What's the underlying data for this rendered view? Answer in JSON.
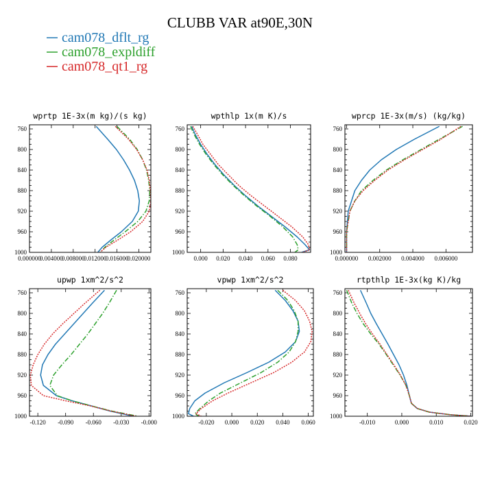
{
  "title": "CLUBB VAR at90E,30N",
  "legend": [
    {
      "name": "cam078_dflt_rg",
      "color": "#1f77b4",
      "style": "solid"
    },
    {
      "name": "cam078_expldiff",
      "color": "#2ca02c",
      "style": "dashdot"
    },
    {
      "name": "cam078_qt1_rg",
      "color": "#d62728",
      "style": "dotted"
    }
  ],
  "chart_data": [
    {
      "type": "line",
      "title": "wprtp  1E-3x(m kg)/(s kg)",
      "xlim": [
        0.0,
        0.0222
      ],
      "ylim": [
        1000,
        752
      ],
      "yticks": [
        760,
        800,
        840,
        880,
        920,
        960,
        1000
      ],
      "xticks": [
        0.0,
        0.004,
        0.008,
        0.012,
        0.016,
        0.02
      ],
      "xtick_labels": [
        "0.000000",
        "0.004000",
        "0.008000",
        "0.012000",
        "0.016000",
        "0.020000"
      ],
      "y": [
        755,
        780,
        800,
        820,
        840,
        860,
        880,
        900,
        920,
        940,
        960,
        975,
        990,
        1000
      ],
      "series": [
        {
          "name": "cam078_dflt_rg",
          "color": "#1f77b4",
          "style": "solid",
          "x": [
            0.0122,
            0.0143,
            0.0159,
            0.0172,
            0.0183,
            0.0192,
            0.0198,
            0.0201,
            0.0199,
            0.0188,
            0.0168,
            0.015,
            0.0133,
            0.0125
          ]
        },
        {
          "name": "cam078_expldiff",
          "color": "#2ca02c",
          "style": "dashdot",
          "x": [
            0.016,
            0.0183,
            0.0197,
            0.0207,
            0.0214,
            0.0218,
            0.022,
            0.0219,
            0.0213,
            0.0198,
            0.0175,
            0.0156,
            0.0138,
            0.013
          ]
        },
        {
          "name": "cam078_qt1_rg",
          "color": "#d62728",
          "style": "dotted",
          "x": [
            0.0157,
            0.0181,
            0.0196,
            0.0207,
            0.0215,
            0.0219,
            0.0221,
            0.0222,
            0.0219,
            0.0207,
            0.0185,
            0.0163,
            0.014,
            0.0129
          ]
        }
      ]
    },
    {
      "type": "line",
      "title": "wpthlp  1x(m K)/s",
      "xlim": [
        -0.012,
        0.098
      ],
      "ylim": [
        1000,
        752
      ],
      "yticks": [
        760,
        800,
        840,
        880,
        920,
        960,
        1000
      ],
      "xticks": [
        0.0,
        0.02,
        0.04,
        0.06,
        0.08
      ],
      "xtick_labels": [
        "0.000",
        "0.020",
        "0.040",
        "0.060",
        "0.080"
      ],
      "y": [
        755,
        770,
        790,
        810,
        830,
        850,
        870,
        890,
        910,
        930,
        950,
        970,
        985,
        995,
        1000
      ],
      "series": [
        {
          "name": "cam078_dflt_rg",
          "color": "#1f77b4",
          "style": "solid",
          "x": [
            -0.008,
            -0.005,
            0.0,
            0.006,
            0.013,
            0.021,
            0.03,
            0.04,
            0.051,
            0.063,
            0.075,
            0.086,
            0.093,
            0.097,
            0.09
          ]
        },
        {
          "name": "cam078_expldiff",
          "color": "#2ca02c",
          "style": "dashdot",
          "x": [
            -0.009,
            -0.006,
            -0.001,
            0.005,
            0.012,
            0.02,
            0.029,
            0.039,
            0.05,
            0.062,
            0.073,
            0.082,
            0.086,
            0.087,
            0.084
          ]
        },
        {
          "name": "cam078_qt1_rg",
          "color": "#d62728",
          "style": "dotted",
          "x": [
            -0.007,
            -0.003,
            0.002,
            0.009,
            0.016,
            0.025,
            0.034,
            0.045,
            0.057,
            0.069,
            0.081,
            0.091,
            0.096,
            0.097,
            0.091
          ]
        }
      ]
    },
    {
      "type": "line",
      "title": "wprcp  1E-3x(m/s) (kg/kg)",
      "xlim": [
        -0.0001,
        0.0076
      ],
      "ylim": [
        1000,
        752
      ],
      "yticks": [
        760,
        800,
        840,
        880,
        920,
        960,
        1000
      ],
      "xticks": [
        0.0,
        0.002,
        0.004,
        0.006
      ],
      "xtick_labels": [
        "0.000000",
        "0.002000",
        "0.004000",
        "0.006000"
      ],
      "y": [
        755,
        780,
        800,
        820,
        840,
        860,
        880,
        900,
        920,
        940,
        960,
        980,
        1000
      ],
      "series": [
        {
          "name": "cam078_dflt_rg",
          "color": "#1f77b4",
          "style": "solid",
          "x": [
            0.0056,
            0.0041,
            0.003,
            0.0021,
            0.0014,
            0.0009,
            0.0005,
            0.0003,
            0.0001,
            5e-05,
            0.0,
            0.0,
            0.0
          ]
        },
        {
          "name": "cam078_expldiff",
          "color": "#2ca02c",
          "style": "dashdot",
          "x": [
            0.007,
            0.0056,
            0.0045,
            0.0034,
            0.0024,
            0.0016,
            0.0009,
            0.0005,
            0.0002,
            0.0001,
            0.0,
            0.0,
            0.0
          ]
        },
        {
          "name": "cam078_qt1_rg",
          "color": "#d62728",
          "style": "dotted",
          "x": [
            0.0069,
            0.0057,
            0.0046,
            0.0035,
            0.0025,
            0.0017,
            0.001,
            0.0005,
            0.0002,
            0.0001,
            0.0,
            0.0,
            0.0
          ]
        }
      ]
    },
    {
      "type": "line",
      "title": "upwp  1xm^2/s^2",
      "xlim": [
        -0.129,
        0.002
      ],
      "ylim": [
        1000,
        752
      ],
      "yticks": [
        760,
        800,
        840,
        880,
        920,
        960,
        1000
      ],
      "xticks": [
        -0.12,
        -0.09,
        -0.06,
        -0.03,
        0.0
      ],
      "xtick_labels": [
        "-0.120",
        "-0.090",
        "-0.060",
        "-0.030",
        "-0.000"
      ],
      "y": [
        755,
        780,
        800,
        820,
        840,
        860,
        880,
        900,
        920,
        940,
        960,
        970,
        980,
        990,
        1000
      ],
      "series": [
        {
          "name": "cam078_dflt_rg",
          "color": "#1f77b4",
          "style": "solid",
          "x": [
            -0.048,
            -0.061,
            -0.071,
            -0.081,
            -0.091,
            -0.101,
            -0.109,
            -0.115,
            -0.117,
            -0.114,
            -0.1,
            -0.083,
            -0.062,
            -0.042,
            -0.017
          ]
        },
        {
          "name": "cam078_expldiff",
          "color": "#2ca02c",
          "style": "dashdot",
          "x": [
            -0.035,
            -0.043,
            -0.05,
            -0.058,
            -0.066,
            -0.075,
            -0.084,
            -0.094,
            -0.103,
            -0.107,
            -0.099,
            -0.083,
            -0.062,
            -0.04,
            -0.012
          ]
        },
        {
          "name": "cam078_qt1_rg",
          "color": "#d62728",
          "style": "dotted",
          "x": [
            -0.053,
            -0.069,
            -0.081,
            -0.093,
            -0.104,
            -0.113,
            -0.12,
            -0.125,
            -0.128,
            -0.127,
            -0.114,
            -0.09,
            -0.063,
            -0.041,
            -0.014
          ]
        }
      ]
    },
    {
      "type": "line",
      "title": "vpwp  1xm^2/s^2",
      "xlim": [
        -0.035,
        0.064
      ],
      "ylim": [
        1000,
        752
      ],
      "yticks": [
        760,
        800,
        840,
        880,
        920,
        960,
        1000
      ],
      "xticks": [
        -0.02,
        0.0,
        0.02,
        0.04,
        0.06
      ],
      "xtick_labels": [
        "-0.020",
        "0.000",
        "0.020",
        "0.040",
        "0.060"
      ],
      "y": [
        755,
        775,
        795,
        815,
        835,
        855,
        875,
        895,
        915,
        935,
        955,
        970,
        985,
        995,
        1000
      ],
      "series": [
        {
          "name": "cam078_dflt_rg",
          "color": "#1f77b4",
          "style": "solid",
          "x": [
            0.034,
            0.042,
            0.048,
            0.052,
            0.053,
            0.05,
            0.042,
            0.029,
            0.012,
            -0.006,
            -0.021,
            -0.029,
            -0.033,
            -0.034,
            -0.03
          ]
        },
        {
          "name": "cam078_expldiff",
          "color": "#2ca02c",
          "style": "dashdot",
          "x": [
            0.036,
            0.044,
            0.049,
            0.052,
            0.052,
            0.05,
            0.045,
            0.036,
            0.023,
            0.007,
            -0.009,
            -0.018,
            -0.025,
            -0.029,
            -0.026
          ]
        },
        {
          "name": "cam078_qt1_rg",
          "color": "#d62728",
          "style": "dotted",
          "x": [
            0.04,
            0.05,
            0.057,
            0.061,
            0.063,
            0.062,
            0.057,
            0.047,
            0.033,
            0.015,
            -0.003,
            -0.015,
            -0.024,
            -0.028,
            -0.024
          ]
        }
      ]
    },
    {
      "type": "line",
      "title": "rtpthlp  1E-3x(kg K)/kg",
      "xlim": [
        -0.0165,
        0.0205
      ],
      "ylim": [
        1000,
        752
      ],
      "yticks": [
        760,
        800,
        840,
        880,
        920,
        960,
        1000
      ],
      "xticks": [
        -0.01,
        0.0,
        0.01,
        0.02
      ],
      "xtick_labels": [
        "-0.010",
        "0.000",
        "0.010",
        "0.020"
      ],
      "y": [
        755,
        780,
        800,
        820,
        840,
        860,
        880,
        900,
        920,
        940,
        960,
        975,
        985,
        992,
        997,
        1000
      ],
      "series": [
        {
          "name": "cam078_dflt_rg",
          "color": "#1f77b4",
          "style": "solid",
          "x": [
            -0.012,
            -0.0103,
            -0.009,
            -0.0074,
            -0.0057,
            -0.004,
            -0.0024,
            -0.0008,
            0.0005,
            0.0015,
            0.0022,
            0.0028,
            0.0045,
            0.008,
            0.014,
            0.02
          ]
        },
        {
          "name": "cam078_expldiff",
          "color": "#2ca02c",
          "style": "dashdot",
          "x": [
            -0.016,
            -0.0145,
            -0.013,
            -0.0112,
            -0.009,
            -0.0066,
            -0.0045,
            -0.0025,
            -0.0005,
            0.0012,
            0.0022,
            0.0028,
            0.0045,
            0.008,
            0.014,
            0.02
          ]
        },
        {
          "name": "cam078_qt1_rg",
          "color": "#d62728",
          "style": "dotted",
          "x": [
            -0.0155,
            -0.0138,
            -0.0122,
            -0.0105,
            -0.0085,
            -0.0063,
            -0.0043,
            -0.0023,
            -0.0004,
            0.0012,
            0.0022,
            0.0028,
            0.0045,
            0.008,
            0.014,
            0.02
          ]
        }
      ]
    }
  ]
}
